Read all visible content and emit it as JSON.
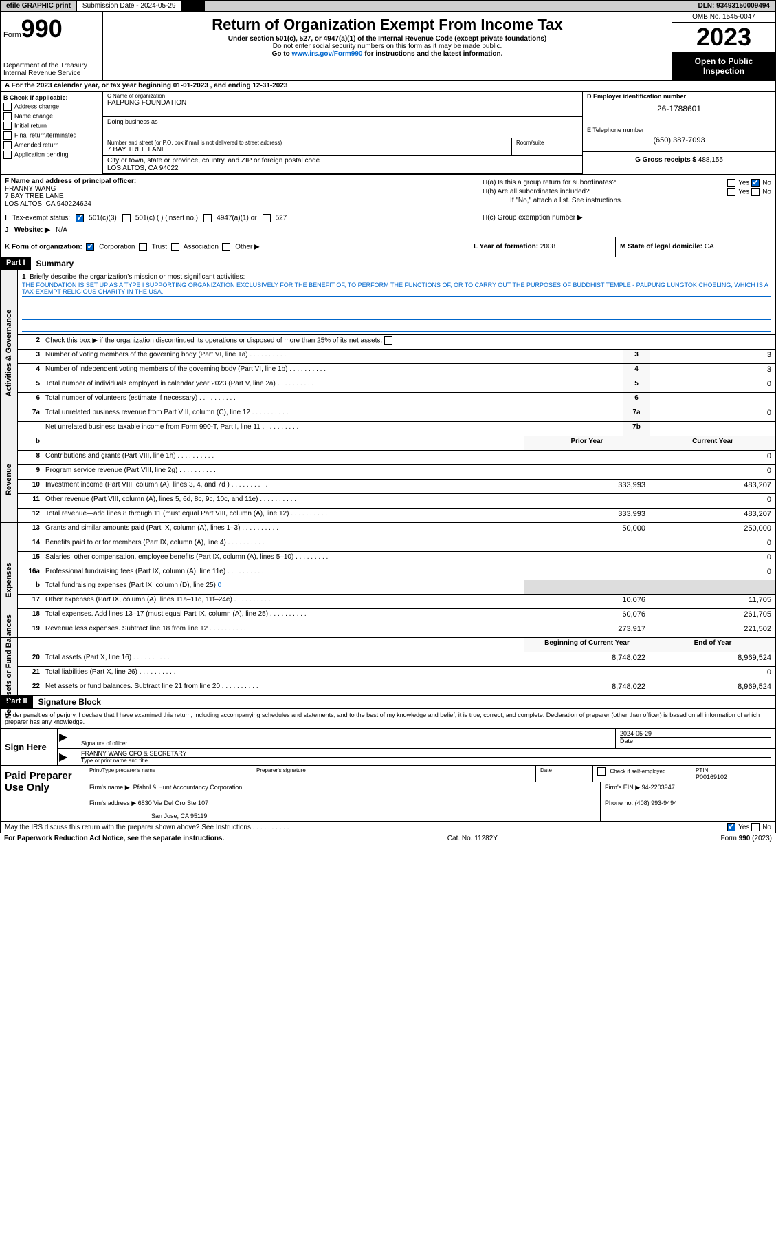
{
  "topbar": {
    "efile": "efile GRAPHIC print",
    "submission_label": "Submission Date - 2024-05-29",
    "dln": "DLN: 93493150009494"
  },
  "header": {
    "form_label": "Form",
    "form_number": "990",
    "title": "Return of Organization Exempt From Income Tax",
    "subtitle1": "Under section 501(c), 527, or 4947(a)(1) of the Internal Revenue Code (except private foundations)",
    "subtitle2": "Do not enter social security numbers on this form as it may be made public.",
    "goto": "Go to ",
    "goto_link": "www.irs.gov/Form990",
    "goto_suffix": " for instructions and the latest information.",
    "dept": "Department of the Treasury",
    "irs": "Internal Revenue Service",
    "omb": "OMB No. 1545-0047",
    "year": "2023",
    "open_public": "Open to Public Inspection"
  },
  "lineA": "For the 2023 calendar year, or tax year beginning 01-01-2023   , and ending 12-31-2023",
  "checkB": {
    "label": "B Check if applicable:",
    "items": [
      "Address change",
      "Name change",
      "Initial return",
      "Final return/terminated",
      "Amended return",
      "Application pending"
    ]
  },
  "orgC": {
    "name_lbl": "C Name of organization",
    "name": "PALPUNG FOUNDATION",
    "dba_lbl": "Doing business as",
    "addr_lbl": "Number and street (or P.O. box if mail is not delivered to street address)",
    "addr": "7 BAY TREE LANE",
    "room_lbl": "Room/suite",
    "city_lbl": "City or town, state or province, country, and ZIP or foreign postal code",
    "city": "LOS ALTOS, CA  94022"
  },
  "einD": {
    "lbl": "D Employer identification number",
    "val": "26-1788601"
  },
  "telE": {
    "lbl": "E Telephone number",
    "val": "(650) 387-7093"
  },
  "grossG": {
    "lbl": "G Gross receipts $",
    "val": "488,155"
  },
  "officerF": {
    "lbl": "F Name and address of principal officer:",
    "name": "FRANNY WANG",
    "addr1": "7 BAY TREE LANE",
    "addr2": "LOS ALTOS, CA  940224624"
  },
  "groupH": {
    "ha": "H(a)  Is this a group return for subordinates?",
    "hb": "H(b)  Are all subordinates included?",
    "hb_note": "If \"No,\" attach a list. See instructions.",
    "hc": "H(c)  Group exemption number ▶"
  },
  "taxI": {
    "lbl": "Tax-exempt status:",
    "opt1": "501(c)(3)",
    "opt2": "501(c) (  ) (insert no.)",
    "opt3": "4947(a)(1) or",
    "opt4": "527"
  },
  "webJ": {
    "lbl": "Website: ▶",
    "val": "N/A"
  },
  "formK": {
    "lbl": "K Form of organization:",
    "opts": [
      "Corporation",
      "Trust",
      "Association",
      "Other ▶"
    ]
  },
  "yearL": {
    "lbl": "L Year of formation:",
    "val": "2008"
  },
  "domM": {
    "lbl": "M State of legal domicile:",
    "val": "CA"
  },
  "part1": {
    "label": "Part I",
    "title": "Summary",
    "mission_lbl": "Briefly describe the organization's mission or most significant activities:",
    "mission": "THE FOUNDATION IS SET UP AS A TYPE I SUPPORTING ORGANIZATION EXCLUSIVELY FOR THE BENEFIT OF, TO PERFORM THE FUNCTIONS OF, OR TO CARRY OUT THE PURPOSES OF BUDDHIST TEMPLE - PALPUNG LUNGTOK CHOELING, WHICH IS A TAX-EXEMPT RELIGIOUS CHARITY IN THE USA.",
    "line2": "Check this box ▶       if the organization discontinued its operations or disposed of more than 25% of its net assets.",
    "rows_gov": [
      {
        "n": "3",
        "t": "Number of voting members of the governing body (Part VI, line 1a)",
        "c": "3",
        "v": "3"
      },
      {
        "n": "4",
        "t": "Number of independent voting members of the governing body (Part VI, line 1b)",
        "c": "4",
        "v": "3"
      },
      {
        "n": "5",
        "t": "Total number of individuals employed in calendar year 2023 (Part V, line 2a)",
        "c": "5",
        "v": "0"
      },
      {
        "n": "6",
        "t": "Total number of volunteers (estimate if necessary)",
        "c": "6",
        "v": ""
      },
      {
        "n": "7a",
        "t": "Total unrelated business revenue from Part VIII, column (C), line 12",
        "c": "7a",
        "v": "0"
      },
      {
        "n": "",
        "t": "Net unrelated business taxable income from Form 990-T, Part I, line 11",
        "c": "7b",
        "v": ""
      }
    ],
    "hdr_prior": "Prior Year",
    "hdr_current": "Current Year",
    "rows_rev": [
      {
        "n": "8",
        "t": "Contributions and grants (Part VIII, line 1h)",
        "p": "",
        "c": "0"
      },
      {
        "n": "9",
        "t": "Program service revenue (Part VIII, line 2g)",
        "p": "",
        "c": "0"
      },
      {
        "n": "10",
        "t": "Investment income (Part VIII, column (A), lines 3, 4, and 7d )",
        "p": "333,993",
        "c": "483,207"
      },
      {
        "n": "11",
        "t": "Other revenue (Part VIII, column (A), lines 5, 6d, 8c, 9c, 10c, and 11e)",
        "p": "",
        "c": "0"
      },
      {
        "n": "12",
        "t": "Total revenue—add lines 8 through 11 (must equal Part VIII, column (A), line 12)",
        "p": "333,993",
        "c": "483,207"
      }
    ],
    "rows_exp": [
      {
        "n": "13",
        "t": "Grants and similar amounts paid (Part IX, column (A), lines 1–3)",
        "p": "50,000",
        "c": "250,000"
      },
      {
        "n": "14",
        "t": "Benefits paid to or for members (Part IX, column (A), line 4)",
        "p": "",
        "c": "0"
      },
      {
        "n": "15",
        "t": "Salaries, other compensation, employee benefits (Part IX, column (A), lines 5–10)",
        "p": "",
        "c": "0"
      },
      {
        "n": "16a",
        "t": "Professional fundraising fees (Part IX, column (A), line 11e)",
        "p": "",
        "c": "0"
      }
    ],
    "row16b": {
      "n": "b",
      "t": "Total fundraising expenses (Part IX, column (D), line 25) ",
      "v": "0"
    },
    "rows_exp2": [
      {
        "n": "17",
        "t": "Other expenses (Part IX, column (A), lines 11a–11d, 11f–24e)",
        "p": "10,076",
        "c": "11,705"
      },
      {
        "n": "18",
        "t": "Total expenses. Add lines 13–17 (must equal Part IX, column (A), line 25)",
        "p": "60,076",
        "c": "261,705"
      },
      {
        "n": "19",
        "t": "Revenue less expenses. Subtract line 18 from line 12",
        "p": "273,917",
        "c": "221,502"
      }
    ],
    "hdr_beg": "Beginning of Current Year",
    "hdr_end": "End of Year",
    "rows_net": [
      {
        "n": "20",
        "t": "Total assets (Part X, line 16)",
        "p": "8,748,022",
        "c": "8,969,524"
      },
      {
        "n": "21",
        "t": "Total liabilities (Part X, line 26)",
        "p": "",
        "c": "0"
      },
      {
        "n": "22",
        "t": "Net assets or fund balances. Subtract line 21 from line 20",
        "p": "8,748,022",
        "c": "8,969,524"
      }
    ],
    "vert_gov": "Activities & Governance",
    "vert_rev": "Revenue",
    "vert_exp": "Expenses",
    "vert_net": "Net Assets or Fund Balances"
  },
  "part2": {
    "label": "Part II",
    "title": "Signature Block",
    "decl": "Under penalties of perjury, I declare that I have examined this return, including accompanying schedules and statements, and to the best of my knowledge and belief, it is true, correct, and complete. Declaration of preparer (other than officer) is based on all information of which preparer has any knowledge.",
    "sign_here": "Sign Here",
    "sig_lbl": "Signature of officer",
    "sig_date": "2024-05-29",
    "sig_date_lbl": "Date",
    "sig_name": "FRANNY WANG  CFO & SECRETARY",
    "sig_name_lbl": "Type or print name and title",
    "paid_prep": "Paid Preparer Use Only",
    "prep_name_lbl": "Print/Type preparer's name",
    "prep_sig_lbl": "Preparer's signature",
    "prep_date_lbl": "Date",
    "prep_check": "Check        if self-employed",
    "ptin_lbl": "PTIN",
    "ptin": "P00169102",
    "firm_name_lbl": "Firm's name   ▶",
    "firm_name": "Pfahnl & Hunt Accountancy Corporation",
    "firm_ein_lbl": "Firm's EIN ▶",
    "firm_ein": "94-2203947",
    "firm_addr_lbl": "Firm's address ▶",
    "firm_addr1": "6830 Via Del Oro Ste 107",
    "firm_addr2": "San Jose, CA  95119",
    "phone_lbl": "Phone no.",
    "phone": "(408) 993-9494"
  },
  "discuss": "May the IRS discuss this return with the preparer shown above? See Instructions.",
  "footer": {
    "left": "For Paperwork Reduction Act Notice, see the separate instructions.",
    "mid": "Cat. No. 11282Y",
    "right": "Form 990 (2023)"
  },
  "bhdr": "b",
  "yes": "Yes",
  "no": "No"
}
